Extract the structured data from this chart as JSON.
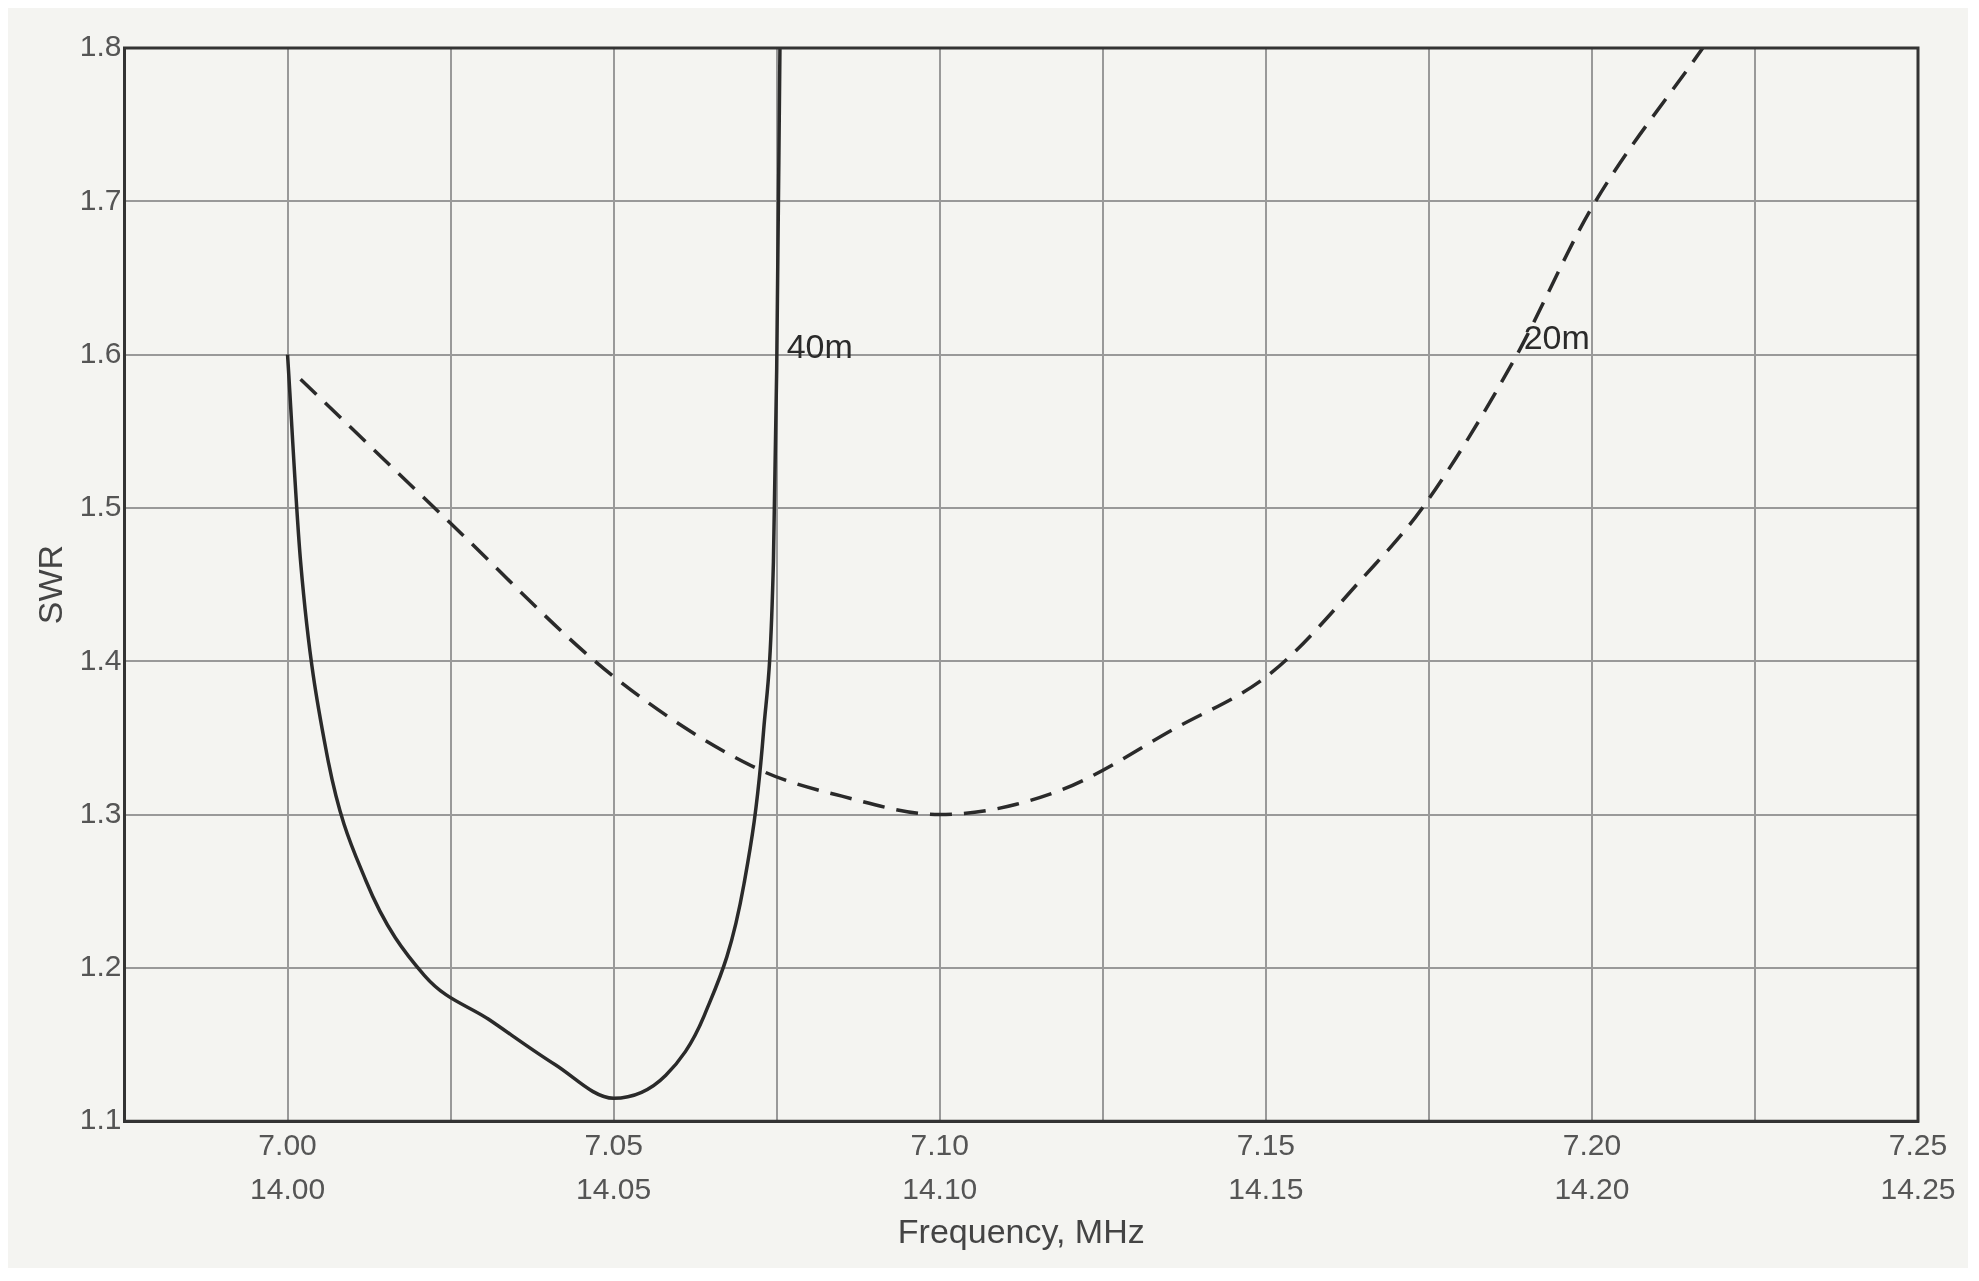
{
  "chart_data": {
    "type": "line",
    "xlabel": "Frequency, MHz",
    "ylabel": "SWR",
    "xlim": [
      6.975,
      7.25
    ],
    "xticks": [
      {
        "value": 7.0,
        "label": "7.00"
      },
      {
        "value": 7.025,
        "label": null
      },
      {
        "value": 7.05,
        "label": "7.05"
      },
      {
        "value": 7.075,
        "label": null
      },
      {
        "value": 7.1,
        "label": "7.10"
      },
      {
        "value": 7.125,
        "label": null
      },
      {
        "value": 7.15,
        "label": "7.15"
      },
      {
        "value": 7.175,
        "label": null
      },
      {
        "value": 7.2,
        "label": "7.20"
      },
      {
        "value": 7.225,
        "label": null
      },
      {
        "value": 7.25,
        "label": "7.25"
      }
    ],
    "x2lim": [
      13.975,
      14.25
    ],
    "x2ticks": [
      {
        "value": 14.0,
        "label": "14.00"
      },
      {
        "value": 14.05,
        "label": "14.05"
      },
      {
        "value": 14.1,
        "label": "14.10"
      },
      {
        "value": 14.15,
        "label": "14.15"
      },
      {
        "value": 14.2,
        "label": "14.20"
      },
      {
        "value": 14.25,
        "label": "14.25"
      }
    ],
    "ylim": [
      1.1,
      1.8
    ],
    "yticks": [
      1.1,
      1.2,
      1.3,
      1.4,
      1.5,
      1.6,
      1.7,
      1.8
    ],
    "grid": true,
    "legend": false,
    "marker": "none",
    "series": [
      {
        "name": "40m",
        "color": "#2a2a2a",
        "line_style": "solid",
        "x": [
          7.0,
          7.002,
          7.006,
          7.012,
          7.021,
          7.031,
          7.041,
          7.05,
          7.058,
          7.064,
          7.07,
          7.073,
          7.0745,
          7.075,
          7.0755
        ],
        "values": [
          1.6,
          1.465,
          1.34,
          1.257,
          1.195,
          1.166,
          1.137,
          1.115,
          1.13,
          1.17,
          1.255,
          1.355,
          1.465,
          1.59,
          1.8
        ]
      },
      {
        "name": "20m",
        "color": "#2a2a2a",
        "line_style": "dashed",
        "x": [
          7.002,
          7.025,
          7.05,
          7.072,
          7.085,
          7.1,
          7.118,
          7.136,
          7.151,
          7.165,
          7.174,
          7.188,
          7.2,
          7.217
        ],
        "values": [
          1.584,
          1.49,
          1.39,
          1.33,
          1.312,
          1.3,
          1.315,
          1.356,
          1.393,
          1.455,
          1.5,
          1.596,
          1.696,
          1.8
        ]
      }
    ]
  }
}
